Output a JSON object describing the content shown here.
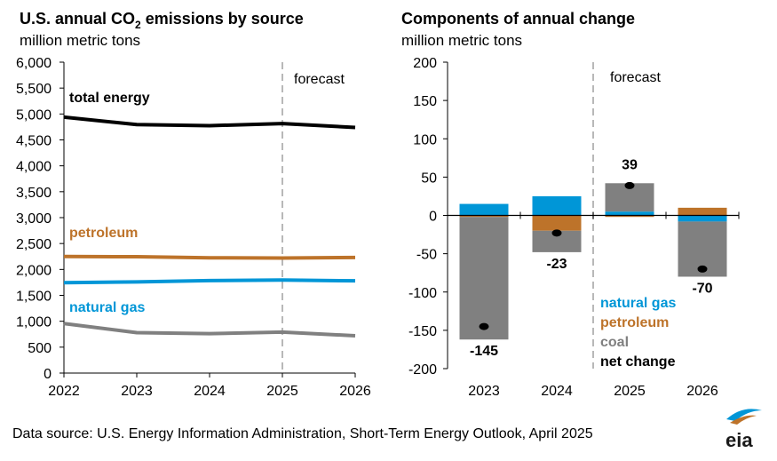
{
  "left": {
    "title_main": "U.S. annual CO",
    "title_sub": "2",
    "title_end": " emissions by source",
    "subtitle": "million metric tons",
    "forecast_label": "forecast"
  },
  "right": {
    "title": "Components of annual change",
    "subtitle": "million metric tons",
    "forecast_label": "forecast"
  },
  "legend": {
    "natural_gas": "natural gas",
    "petroleum": "petroleum",
    "coal": "coal",
    "net_change": "net change"
  },
  "source": "Data source: U.S. Energy Information Administration, Short-Term Energy Outlook, April 2025",
  "logo_text": "eia",
  "colors": {
    "total": "#000000",
    "petroleum": "#BD732A",
    "natural_gas": "#0096D7",
    "coal": "#808080",
    "axis": "#000000",
    "forecast_line": "#a0a0a0"
  },
  "chart_data": [
    {
      "type": "line",
      "title": "U.S. annual CO2 emissions by source",
      "subtitle": "million metric tons",
      "x": [
        2022,
        2023,
        2024,
        2025,
        2026
      ],
      "x_tick_labels": [
        "2022",
        "2023",
        "2024",
        "2025",
        "2026"
      ],
      "ylim": [
        0,
        6000
      ],
      "y_ticks": [
        0,
        500,
        1000,
        1500,
        2000,
        2500,
        3000,
        3500,
        4000,
        4500,
        5000,
        5500,
        6000
      ],
      "y_tick_labels": [
        "0",
        "500",
        "1,000",
        "1,500",
        "2,000",
        "2,500",
        "3,000",
        "3,500",
        "4,000",
        "4,500",
        "5,000",
        "5,500",
        "6,000"
      ],
      "forecast_start": 2025,
      "series": [
        {
          "name": "total energy",
          "color_key": "total",
          "values": [
            4940,
            4795,
            4775,
            4815,
            4740
          ]
        },
        {
          "name": "petroleum",
          "color_key": "petroleum",
          "values": [
            2250,
            2245,
            2225,
            2220,
            2230
          ]
        },
        {
          "name": "natural gas",
          "color_key": "natural_gas",
          "values": [
            1745,
            1760,
            1785,
            1795,
            1780
          ]
        },
        {
          "name": "coal",
          "color_key": "coal",
          "values": [
            955,
            780,
            760,
            790,
            720
          ]
        }
      ]
    },
    {
      "type": "bar",
      "stacked": true,
      "title": "Components of annual change",
      "subtitle": "million metric tons",
      "categories": [
        "2023",
        "2024",
        "2025",
        "2026"
      ],
      "ylim": [
        -200,
        200
      ],
      "y_ticks": [
        -200,
        -150,
        -100,
        -50,
        0,
        50,
        100,
        150,
        200
      ],
      "y_tick_labels": [
        "-200",
        "-150",
        "-100",
        "-50",
        "0",
        "50",
        "100",
        "150",
        "200"
      ],
      "forecast_start": "2025",
      "series": [
        {
          "name": "natural gas",
          "color_key": "natural_gas",
          "values": [
            15,
            25,
            5,
            -8
          ]
        },
        {
          "name": "petroleum",
          "color_key": "petroleum",
          "values": [
            -2,
            -20,
            -2,
            10
          ]
        },
        {
          "name": "coal",
          "color_key": "coal",
          "values": [
            -160,
            -28,
            37,
            -72
          ]
        }
      ],
      "net_change": {
        "name": "net change",
        "values": [
          -145,
          -23,
          39,
          -70
        ],
        "labels": [
          "-145",
          "-23",
          "39",
          "-70"
        ]
      }
    }
  ]
}
